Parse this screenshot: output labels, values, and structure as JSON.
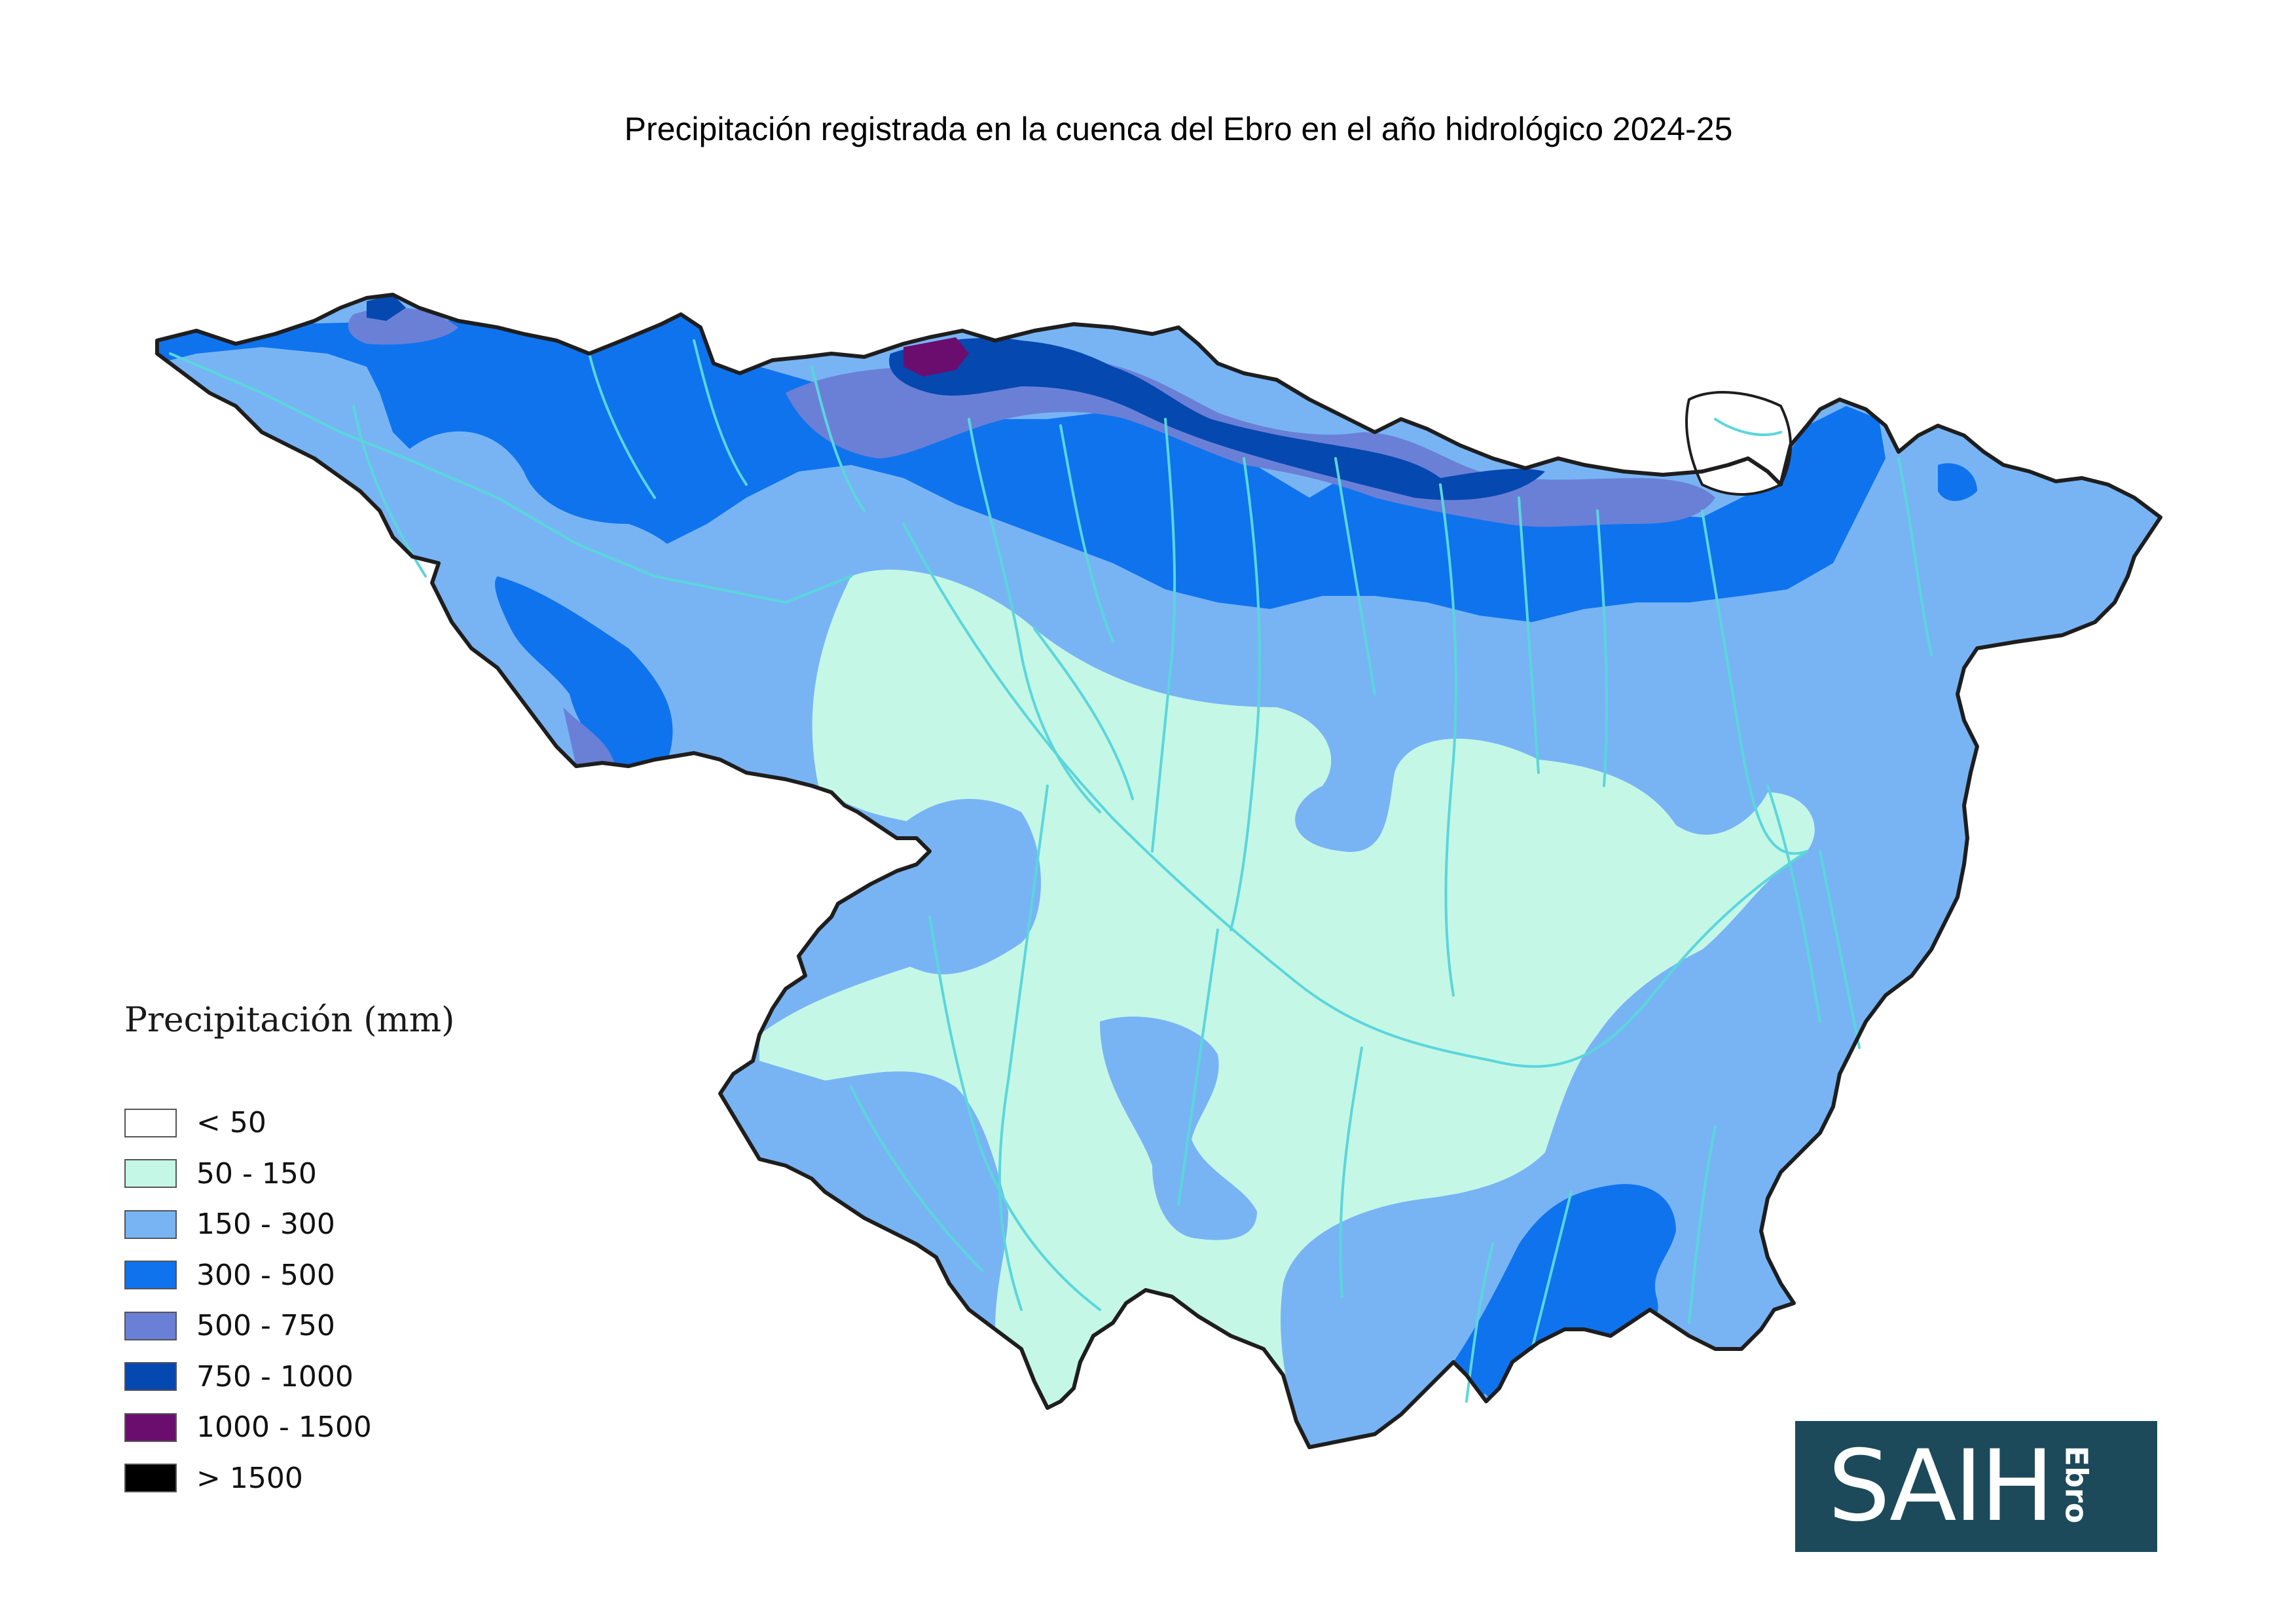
{
  "title": "Precipitación registrada en la cuenca del Ebro en el año hidrológico 2024-25",
  "legend": {
    "title": "Precipitación (mm)",
    "items": [
      {
        "label": "< 50",
        "color": "#ffffff"
      },
      {
        "label": "50 - 150",
        "color": "#c5f7e6"
      },
      {
        "label": "150 - 300",
        "color": "#78b4f4"
      },
      {
        "label": "300 - 500",
        "color": "#0f73ee"
      },
      {
        "label": "500 - 750",
        "color": "#6a80d7"
      },
      {
        "label": "750 - 1000",
        "color": "#0548b0"
      },
      {
        "label": "1000 - 1500",
        "color": "#6b0d6e"
      },
      {
        "label": "> 1500",
        "color": "#000000"
      }
    ]
  },
  "logo": {
    "main": "SAIH",
    "sub": "Ebro"
  },
  "colors": {
    "river": "#5ad6dc",
    "border": "#1e1e1e",
    "logo_bg": "#1d4a5a"
  }
}
